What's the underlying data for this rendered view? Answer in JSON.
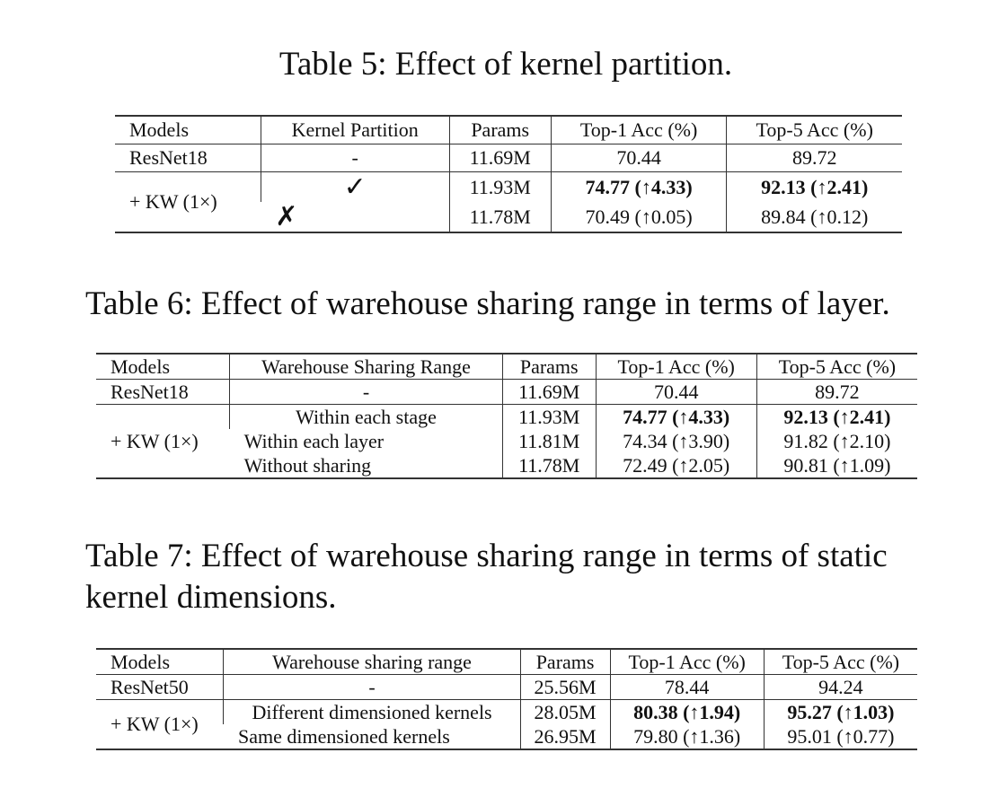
{
  "table5": {
    "caption": "Table 5: Effect of kernel partition.",
    "headers": [
      "Models",
      "Kernel Partition",
      "Params",
      "Top-1 Acc (%)",
      "Top-5 Acc (%)"
    ],
    "baseline": {
      "model": "ResNet18",
      "setting": "-",
      "params": "11.69M",
      "top1": "70.44",
      "top5": "89.72"
    },
    "kw_model": "+ KW (1×)",
    "rows": [
      {
        "setting": "✓",
        "params": "11.93M",
        "top1": "74.77 (↑4.33)",
        "top5": "92.13 (↑2.41)",
        "bold": true
      },
      {
        "setting": "✗",
        "params": "11.78M",
        "top1": "70.49 (↑0.05)",
        "top5": "89.84 (↑0.12)",
        "bold": false
      }
    ]
  },
  "table6": {
    "caption": "Table 6: Effect of warehouse sharing range in terms of layer.",
    "headers": [
      "Models",
      "Warehouse Sharing Range",
      "Params",
      "Top-1 Acc (%)",
      "Top-5 Acc (%)"
    ],
    "baseline": {
      "model": "ResNet18",
      "setting": "-",
      "params": "11.69M",
      "top1": "70.44",
      "top5": "89.72"
    },
    "kw_model": "+ KW (1×)",
    "rows": [
      {
        "setting": "Within each stage",
        "params": "11.93M",
        "top1": "74.77 (↑4.33)",
        "top5": "92.13 (↑2.41)",
        "bold": true
      },
      {
        "setting": "Within each layer",
        "params": "11.81M",
        "top1": "74.34 (↑3.90)",
        "top5": "91.82 (↑2.10)",
        "bold": false
      },
      {
        "setting": "Without sharing",
        "params": "11.78M",
        "top1": "72.49 (↑2.05)",
        "top5": "90.81 (↑1.09)",
        "bold": false
      }
    ]
  },
  "table7": {
    "caption_line1": "Table 7: Effect of warehouse sharing range in terms of static",
    "caption_line2": "kernel dimensions.",
    "headers": [
      "Models",
      "Warehouse sharing range",
      "Params",
      "Top-1 Acc (%)",
      "Top-5 Acc (%)"
    ],
    "baseline": {
      "model": "ResNet50",
      "setting": "-",
      "params": "25.56M",
      "top1": "78.44",
      "top5": "94.24"
    },
    "kw_model": "+ KW (1×)",
    "rows": [
      {
        "setting": "Different dimensioned kernels",
        "params": "28.05M",
        "top1": "80.38 (↑1.94)",
        "top5": "95.27 (↑1.03)",
        "bold": true
      },
      {
        "setting": "Same dimensioned kernels",
        "params": "26.95M",
        "top1": "79.80 (↑1.36)",
        "top5": "95.01 (↑0.77)",
        "bold": false
      }
    ]
  }
}
